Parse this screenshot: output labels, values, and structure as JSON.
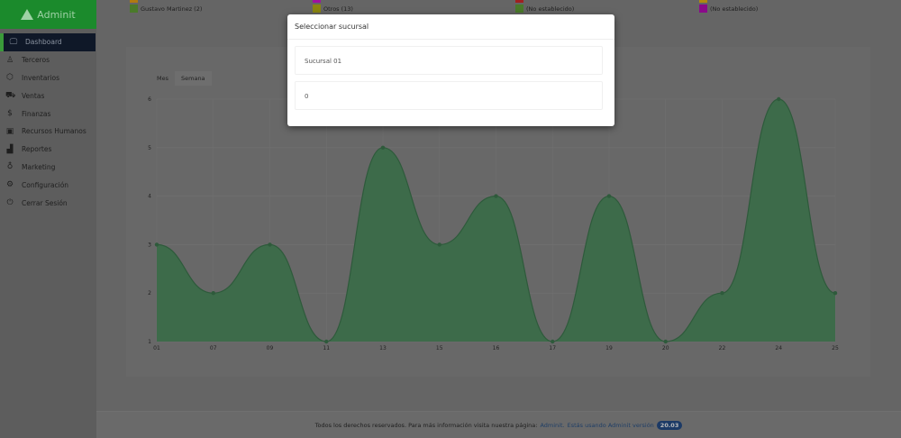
{
  "brand": {
    "name": "Adminit"
  },
  "sidebar": {
    "items": [
      {
        "label": "Dashboard",
        "icon": "monitor-icon",
        "glyph": "🖵"
      },
      {
        "label": "Terceros",
        "icon": "user-icon",
        "glyph": "♙"
      },
      {
        "label": "Inventarios",
        "icon": "box-icon",
        "glyph": "⬡"
      },
      {
        "label": "Ventas",
        "icon": "cart-icon",
        "glyph": "⛟"
      },
      {
        "label": "Finanzas",
        "icon": "dollar-icon",
        "glyph": "$"
      },
      {
        "label": "Recursos Humanos",
        "icon": "id-card-icon",
        "glyph": "▣"
      },
      {
        "label": "Reportes",
        "icon": "bar-chart-icon",
        "glyph": "▟"
      },
      {
        "label": "Marketing",
        "icon": "award-icon",
        "glyph": "♁"
      },
      {
        "label": "Configuración",
        "icon": "gear-icon",
        "glyph": "⚙"
      },
      {
        "label": "Cerrar Sesión",
        "icon": "power-icon",
        "glyph": "⏻"
      }
    ]
  },
  "legend": [
    {
      "label": "Gustavo Martinez (2)",
      "color": "#4a7a2a"
    },
    {
      "label": "Otros (13)",
      "color": "#8a8510"
    },
    {
      "label": "(No establecido)",
      "color": "#4a7a2a"
    },
    {
      "label": "(No establecido)",
      "color": "#8a0a8a"
    }
  ],
  "tabs": [
    "Mes",
    "Semana"
  ],
  "chart_data": {
    "type": "area",
    "categories": [
      "01",
      "07",
      "09",
      "11",
      "13",
      "15",
      "16",
      "17",
      "19",
      "20",
      "22",
      "24",
      "25"
    ],
    "values": [
      3,
      2,
      3,
      1,
      5,
      3,
      4,
      1,
      4,
      1,
      2,
      6,
      2
    ],
    "ylim": [
      1,
      6
    ],
    "yticks": [
      "1",
      "2",
      "3",
      "4",
      "5",
      "6"
    ],
    "grid": true,
    "fill": "#3d6b4a",
    "stroke": "#2e5a3b"
  },
  "modal": {
    "title": "Seleccionar sucursal",
    "options": [
      "Sucursal 01",
      "0"
    ]
  },
  "footer": {
    "text": "Todos los derechos reservados. Para más información visita nuestra página:",
    "link": "Adminit.",
    "version_text": "Estás usando Adminit versión",
    "version": "20.03"
  }
}
